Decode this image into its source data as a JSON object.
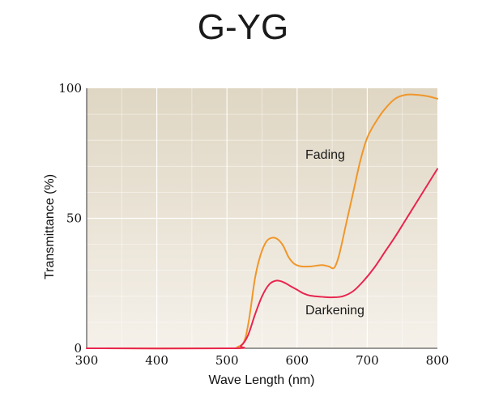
{
  "chart_data": {
    "type": "line",
    "title": "G-YG",
    "xlabel": "Wave Length (nm)",
    "ylabel": "Transmittance (%)",
    "xlim": [
      300,
      800
    ],
    "ylim": [
      0,
      100
    ],
    "x_ticks": [
      300,
      400,
      500,
      600,
      700,
      800
    ],
    "y_ticks": [
      0,
      50,
      100
    ],
    "grid": true,
    "background_gradient": [
      "#dfd6c3",
      "#f5f1ea"
    ],
    "series": [
      {
        "name": "Fading",
        "color": "#f0962a",
        "points": [
          [
            300,
            0
          ],
          [
            500,
            0
          ],
          [
            515,
            0.5
          ],
          [
            525,
            3
          ],
          [
            532,
            12
          ],
          [
            540,
            27
          ],
          [
            548,
            36
          ],
          [
            556,
            41
          ],
          [
            564,
            42.5
          ],
          [
            572,
            42
          ],
          [
            580,
            39.5
          ],
          [
            588,
            35
          ],
          [
            596,
            32.5
          ],
          [
            606,
            31.5
          ],
          [
            620,
            31.5
          ],
          [
            635,
            32
          ],
          [
            645,
            31.5
          ],
          [
            653,
            31
          ],
          [
            660,
            36
          ],
          [
            670,
            48
          ],
          [
            680,
            60
          ],
          [
            690,
            72
          ],
          [
            700,
            81
          ],
          [
            712,
            87
          ],
          [
            725,
            92
          ],
          [
            740,
            96
          ],
          [
            755,
            97.5
          ],
          [
            770,
            97.5
          ],
          [
            785,
            97
          ],
          [
            800,
            96
          ]
        ]
      },
      {
        "name": "Darkening",
        "color": "#e8254e",
        "points": [
          [
            300,
            0
          ],
          [
            505,
            0
          ],
          [
            520,
            1
          ],
          [
            530,
            5
          ],
          [
            540,
            13
          ],
          [
            550,
            20
          ],
          [
            560,
            24.5
          ],
          [
            570,
            26
          ],
          [
            580,
            25.5
          ],
          [
            590,
            24
          ],
          [
            600,
            22.5
          ],
          [
            610,
            21
          ],
          [
            620,
            20.2
          ],
          [
            635,
            19.8
          ],
          [
            650,
            19.6
          ],
          [
            665,
            20
          ],
          [
            680,
            22
          ],
          [
            695,
            26
          ],
          [
            710,
            31
          ],
          [
            725,
            37
          ],
          [
            740,
            43
          ],
          [
            755,
            49.5
          ],
          [
            770,
            56
          ],
          [
            785,
            62.5
          ],
          [
            800,
            69
          ]
        ]
      }
    ]
  }
}
